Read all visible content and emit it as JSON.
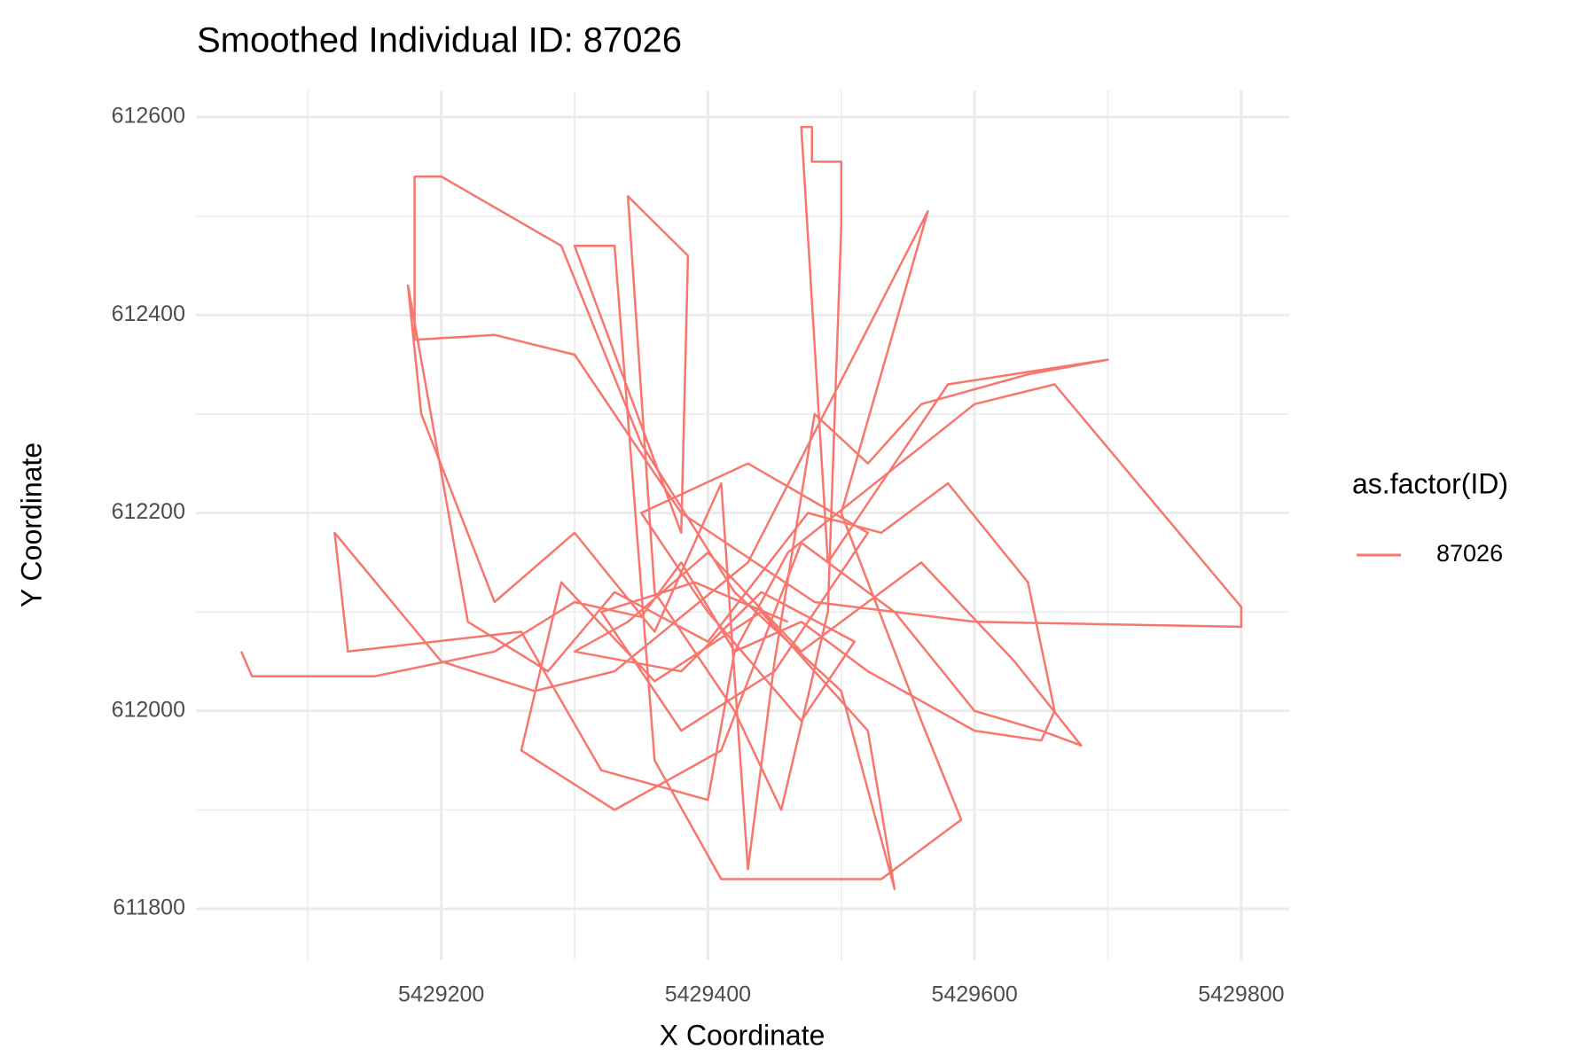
{
  "chart_data": {
    "type": "line",
    "title": "Smoothed Individual ID: 87026",
    "xlabel": "X Coordinate",
    "ylabel": "Y Coordinate",
    "legend_title": "as.factor(ID)",
    "legend_position": "right",
    "grid": true,
    "minor_grid": true,
    "xlim": [
      5429016,
      5429836
    ],
    "xticks": [
      5429200,
      5429400,
      5429600,
      5429800
    ],
    "ylim": [
      611748,
      612627
    ],
    "yticks": [
      611800,
      612000,
      612200,
      612400,
      612600
    ],
    "x": [
      5429050,
      5429058,
      5429150,
      5429240,
      5429300,
      5429350,
      5429380,
      5429420,
      5429470,
      5429520,
      5429600,
      5429650,
      5429660,
      5429640,
      5429580,
      5429530,
      5429475,
      5429400,
      5429330,
      5429280,
      5429220,
      5429175,
      5429185,
      5429240,
      5429300,
      5429360,
      5429410,
      5429430,
      5429450,
      5429480,
      5429520,
      5429560,
      5429640,
      5429700,
      5429580,
      5429490,
      5429470,
      5429478,
      5429478,
      5429500,
      5429500,
      5429490,
      5429455,
      5429420,
      5429360,
      5429340,
      5429385,
      5429380,
      5429300,
      5429330,
      5429360,
      5429410,
      5429530,
      5429590,
      5429560,
      5429500,
      5429565,
      5429430,
      5429330,
      5429270,
      5429200,
      5429120,
      5429130,
      5429260,
      5429320,
      5429400,
      5429420,
      5429460,
      5429600,
      5429660,
      5429800,
      5429800,
      5429600,
      5429480,
      5429380,
      5429300,
      5429240,
      5429180,
      5429180,
      5429200,
      5429290,
      5429350,
      5429420,
      5429500,
      5429540,
      5429520,
      5429440,
      5429360,
      5429290,
      5429260,
      5429330,
      5429410,
      5429470,
      5429540,
      5429600,
      5429650,
      5429680,
      5429630,
      5429560,
      5429470,
      5429400,
      5429340,
      5429300,
      5429380,
      5429440,
      5429510,
      5429470,
      5429400,
      5429350,
      5429430,
      5429520,
      5429450,
      5429380,
      5429320,
      5429390,
      5429460
    ],
    "series": [
      {
        "name": "87026",
        "color": "#F8766D",
        "values": [
          612060,
          612035,
          612035,
          612060,
          612110,
          612095,
          612150,
          612060,
          612090,
          612040,
          611980,
          611970,
          612000,
          612130,
          612230,
          612180,
          612200,
          612070,
          612120,
          612040,
          612090,
          612430,
          612300,
          612110,
          612180,
          612080,
          612230,
          611840,
          612050,
          612300,
          612250,
          612310,
          612340,
          612355,
          612330,
          612150,
          612590,
          612590,
          612555,
          612555,
          612490,
          612100,
          611900,
          612000,
          612120,
          612520,
          612460,
          612180,
          612470,
          612470,
          611950,
          611830,
          611830,
          611890,
          611990,
          612200,
          612505,
          612150,
          612040,
          612020,
          612050,
          612180,
          612060,
          612080,
          611940,
          611910,
          612060,
          612160,
          612310,
          612330,
          612105,
          612085,
          612090,
          612110,
          612200,
          612360,
          612380,
          612375,
          612540,
          612540,
          612470,
          612270,
          612120,
          612020,
          611820,
          611980,
          612100,
          612030,
          612130,
          611960,
          611900,
          611960,
          612170,
          612100,
          612000,
          611980,
          611965,
          612050,
          612150,
          612060,
          612160,
          612090,
          612060,
          612040,
          612120,
          612070,
          611990,
          612100,
          612200,
          612250,
          612180,
          612040,
          611980,
          612100,
          612130,
          612090
        ]
      }
    ]
  }
}
